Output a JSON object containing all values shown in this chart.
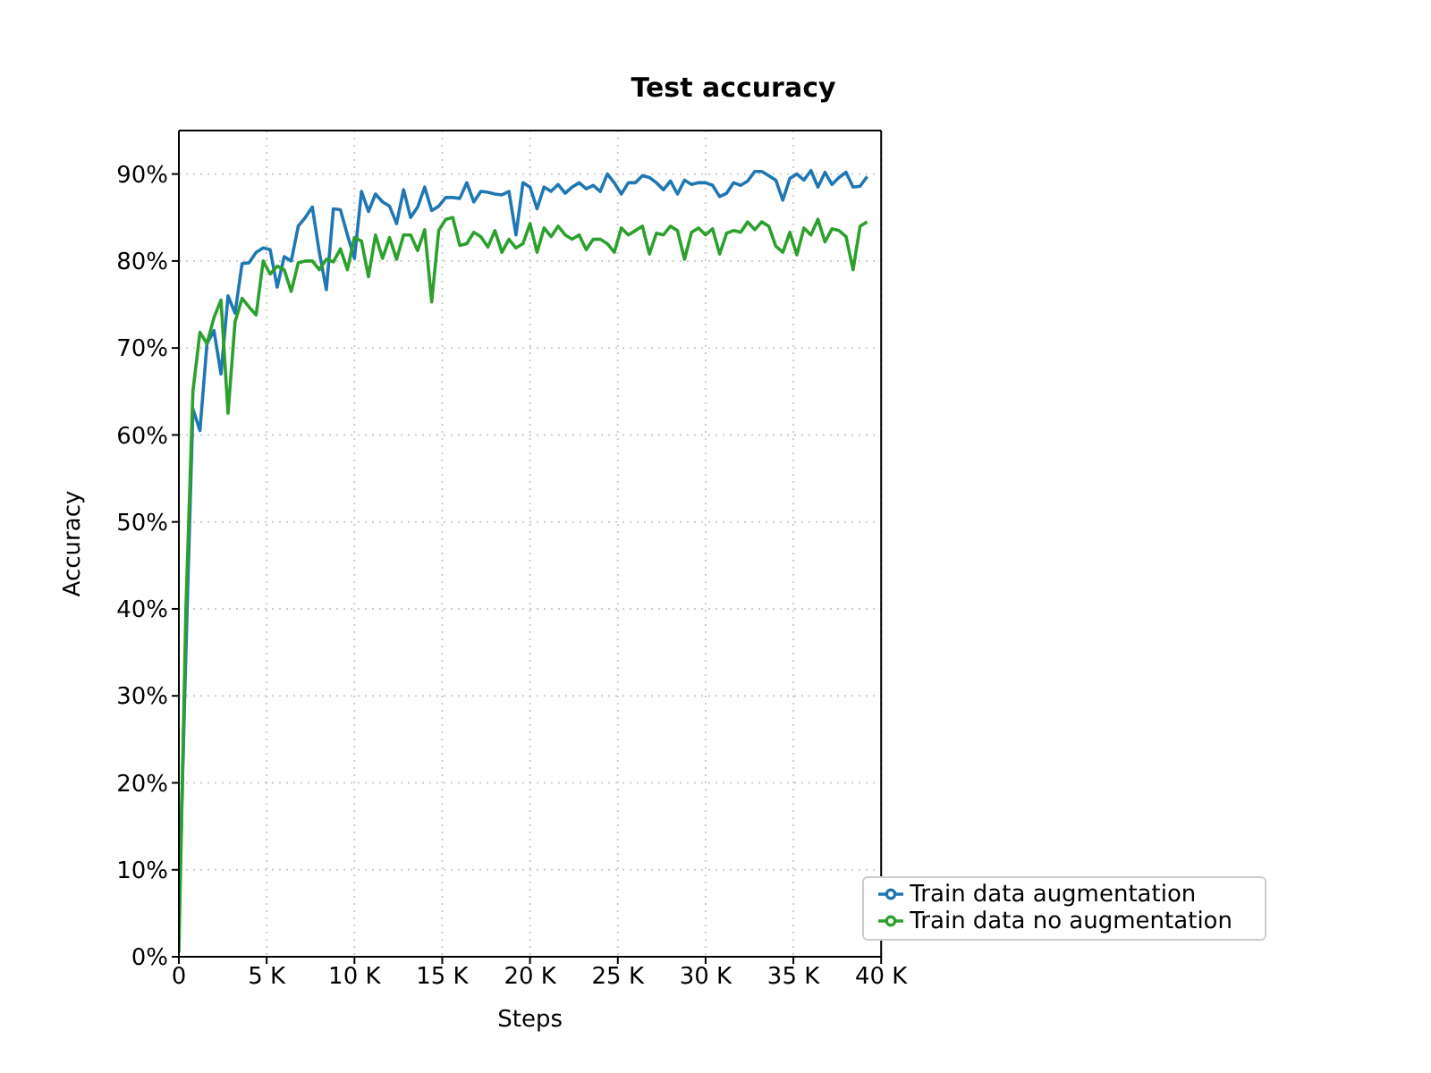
{
  "chart_data": {
    "type": "line",
    "title": "Test accuracy",
    "xlabel": "Steps",
    "ylabel": "Accuracy",
    "x": [
      0,
      400,
      800,
      1200,
      1600,
      2000,
      2400,
      2800,
      3200,
      3600,
      4000,
      4400,
      4800,
      5200,
      5600,
      6000,
      6400,
      6800,
      7200,
      7600,
      8000,
      8400,
      8800,
      9200,
      9600,
      10000,
      10400,
      10800,
      11200,
      11600,
      12000,
      12400,
      12800,
      13200,
      13600,
      14000,
      14400,
      14800,
      15200,
      15600,
      16000,
      16400,
      16800,
      17200,
      17600,
      18000,
      18400,
      18800,
      19200,
      19600,
      20000,
      20400,
      20800,
      21200,
      21600,
      22000,
      22400,
      22800,
      23200,
      23600,
      24000,
      24400,
      24800,
      25200,
      25600,
      26000,
      26400,
      26800,
      27200,
      27600,
      28000,
      28400,
      28800,
      29200,
      29600,
      30000,
      30400,
      30800,
      31200,
      31600,
      32000,
      32400,
      32800,
      33200,
      33600,
      34000,
      34400,
      34800,
      35200,
      35600,
      36000,
      36400,
      36800,
      37200,
      37600,
      38000,
      38400,
      38800,
      39200
    ],
    "series": [
      {
        "name": "Train data augmentation",
        "color": "#1f77b4",
        "values": [
          5,
          35,
          63,
          60.5,
          70.5,
          72,
          67,
          76,
          74,
          79.7,
          79.8,
          81,
          81.5,
          81.3,
          77,
          80.5,
          80,
          84,
          85,
          86.2,
          81,
          76.7,
          86,
          85.9,
          83,
          80.3,
          88,
          85.7,
          87.7,
          86.8,
          86.3,
          84.3,
          88.2,
          85,
          86.2,
          88.5,
          85.8,
          86.3,
          87.3,
          87.3,
          87.2,
          89,
          86.8,
          88,
          87.9,
          87.7,
          87.6,
          88,
          83,
          89,
          88.5,
          86,
          88.5,
          88,
          88.8,
          87.8,
          88.5,
          89,
          88.3,
          88.7,
          88,
          90,
          89,
          87.7,
          89,
          89,
          89.8,
          89.6,
          89,
          88.2,
          89.2,
          87.7,
          89.3,
          88.8,
          89,
          89,
          88.7,
          87.4,
          87.8,
          89,
          88.7,
          89.2,
          90.3,
          90.3,
          89.8,
          89.3,
          87,
          89.5,
          90,
          89.3,
          90.4,
          88.5,
          90.2,
          88.8,
          89.6,
          90.2,
          88.5,
          88.6,
          89.7
        ]
      },
      {
        "name": "Train data no augmentation",
        "color": "#2ca02c",
        "values": [
          0.5,
          40,
          65,
          71.8,
          70.5,
          73.5,
          75.5,
          62.5,
          73,
          75.7,
          74.7,
          73.8,
          80,
          78.5,
          79.4,
          79,
          76.5,
          79.8,
          80,
          80,
          79,
          80.2,
          79.9,
          81.4,
          79,
          82.7,
          82.3,
          78.2,
          83,
          80.3,
          82.7,
          80.2,
          83,
          83,
          81.2,
          83.6,
          75.3,
          83.5,
          84.8,
          85,
          81.8,
          82,
          83.3,
          82.8,
          81.6,
          83.5,
          81,
          82.5,
          81.5,
          82,
          84.3,
          81,
          83.8,
          82.8,
          84,
          83,
          82.5,
          83,
          81.3,
          82.5,
          82.5,
          82,
          81,
          83.8,
          83,
          83.5,
          84,
          80.8,
          83.2,
          83,
          84,
          83.5,
          80.2,
          83.3,
          83.8,
          83,
          83.7,
          80.8,
          83.2,
          83.5,
          83.3,
          84.5,
          83.6,
          84.5,
          84,
          81.7,
          81,
          83.3,
          80.7,
          83.8,
          83,
          84.8,
          82.2,
          83.7,
          83.5,
          82.8,
          79,
          84,
          84.5
        ]
      }
    ],
    "xlim": [
      0,
      40000
    ],
    "xticks": [
      {
        "value": 0,
        "label": "0"
      },
      {
        "value": 5000,
        "label": "5 K"
      },
      {
        "value": 10000,
        "label": "10 K"
      },
      {
        "value": 15000,
        "label": "15 K"
      },
      {
        "value": 20000,
        "label": "20 K"
      },
      {
        "value": 25000,
        "label": "25 K"
      },
      {
        "value": 30000,
        "label": "30 K"
      },
      {
        "value": 35000,
        "label": "35 K"
      },
      {
        "value": 40000,
        "label": "40 K"
      }
    ],
    "ylim": [
      0,
      95
    ],
    "yticks": [
      {
        "value": 0,
        "label": "0%"
      },
      {
        "value": 10,
        "label": "10%"
      },
      {
        "value": 20,
        "label": "20%"
      },
      {
        "value": 30,
        "label": "30%"
      },
      {
        "value": 40,
        "label": "40%"
      },
      {
        "value": 50,
        "label": "50%"
      },
      {
        "value": 60,
        "label": "60%"
      },
      {
        "value": 70,
        "label": "70%"
      },
      {
        "value": 80,
        "label": "80%"
      },
      {
        "value": 90,
        "label": "90%"
      }
    ],
    "grid": true,
    "legend": "bottom right",
    "marker": "none",
    "line_style": "solid"
  }
}
